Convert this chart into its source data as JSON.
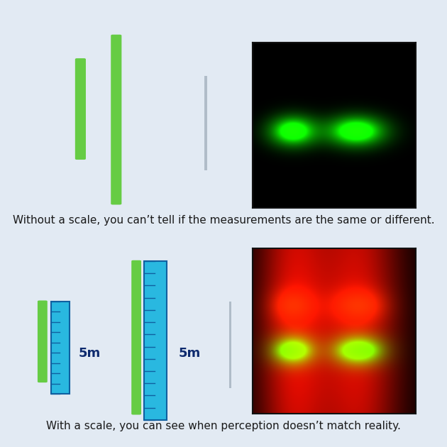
{
  "bg_top": "#e2eaf3",
  "bg_bottom": "#edf1f7",
  "divider_color": "#c8d0da",
  "green_color": "#66cc44",
  "blue_fill": "#29b8e0",
  "ruler_border": "#1060a0",
  "gray_line_color": "#b8c4cc",
  "text_color": "#1a1a1a",
  "label_color": "#0d2a6e",
  "caption_top": "Without a scale, you can’t tell if the measurements are the same or different.",
  "caption_bottom": "With a scale, you can see when perception doesn’t match reality.",
  "caption_fontsize": 11.0,
  "label_5m_fontsize": 13
}
